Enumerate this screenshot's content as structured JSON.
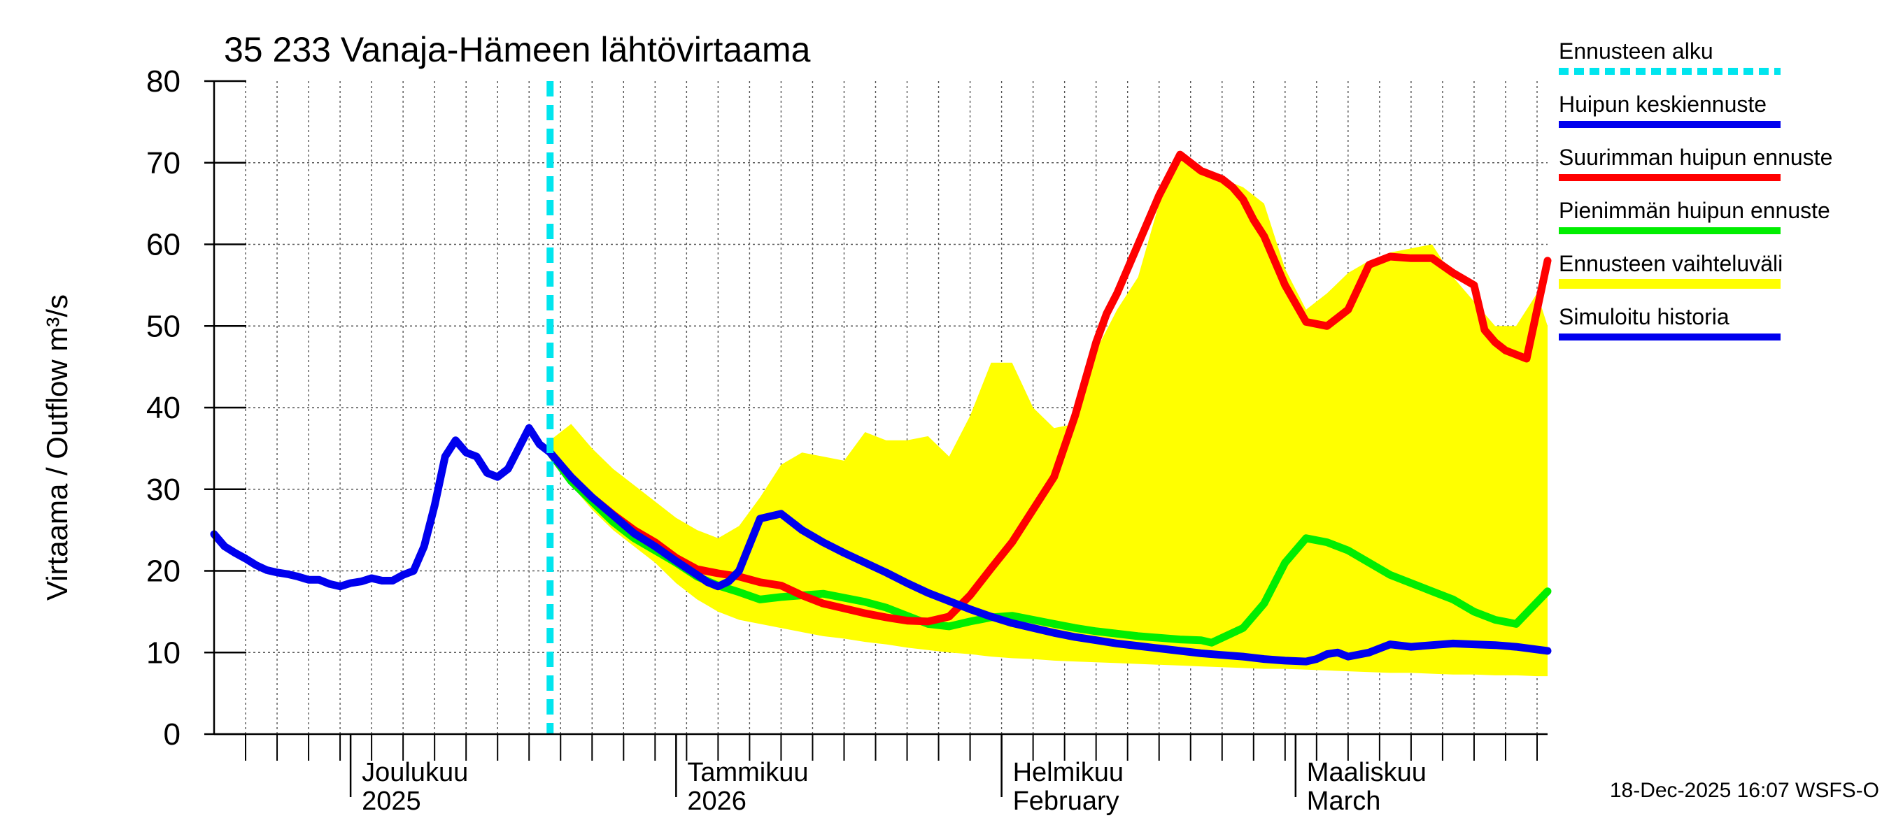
{
  "chart_data": {
    "type": "line",
    "title": "35 233 Vanaja-Hämeen lähtövirtaama",
    "ylabel": "Virtaama / Outflow    m³/s",
    "ylim": [
      0,
      80
    ],
    "yticks": [
      0,
      10,
      20,
      30,
      40,
      50,
      60,
      70,
      80
    ],
    "x_unit": "days since 2025-11-18",
    "xlim": [
      0,
      127
    ],
    "forecast_start_day": 32,
    "month_labels": [
      {
        "day": 13,
        "line1": "Joulukuu",
        "line2": "2025"
      },
      {
        "day": 44,
        "line1": "Tammikuu",
        "line2": "2026"
      },
      {
        "day": 75,
        "line1": "Helmikuu",
        "line2": "February"
      },
      {
        "day": 103,
        "line1": "Maaliskuu",
        "line2": "March"
      }
    ],
    "month_boundaries": [
      13,
      44,
      75,
      103
    ],
    "timestamp": "18-Dec-2025 16:07 WSFS-O",
    "colors": {
      "forecast_start": "#00e5ee",
      "median": "#0000ee",
      "max": "#ff0000",
      "min": "#00ee00",
      "band": "#ffff00",
      "history": "#0000ee"
    },
    "legend": [
      {
        "label": "Ennusteen alku",
        "key": "forecast_start",
        "style": "dashed"
      },
      {
        "label": "Huipun keskiennuste",
        "key": "median",
        "style": "solid"
      },
      {
        "label": "Suurimman huipun ennuste",
        "key": "max",
        "style": "solid"
      },
      {
        "label": "Pienimmän huipun ennuste",
        "key": "min",
        "style": "solid"
      },
      {
        "label": "Ennusteen vaihteluväli",
        "key": "band",
        "style": "solid"
      },
      {
        "label": "Simuloitu historia",
        "key": "history",
        "style": "solid"
      }
    ],
    "series": [
      {
        "name": "Simuloitu historia",
        "key": "history",
        "x": [
          0,
          1,
          2,
          3,
          4,
          5,
          6,
          7,
          8,
          9,
          10,
          11,
          12,
          13,
          14,
          15,
          16,
          17,
          18,
          19,
          20,
          21,
          22,
          23,
          24,
          25,
          26,
          27,
          28,
          29,
          30,
          31,
          32
        ],
        "y": [
          24.5,
          23.0,
          22.2,
          21.5,
          20.7,
          20.1,
          19.8,
          19.6,
          19.3,
          18.9,
          18.9,
          18.4,
          18.1,
          18.5,
          18.7,
          19.1,
          18.8,
          18.8,
          19.5,
          20.0,
          23.0,
          28.0,
          34.0,
          36.0,
          34.5,
          34.0,
          32.0,
          31.5,
          32.5,
          35.0,
          37.5,
          35.5,
          34.5
        ]
      },
      {
        "name": "Huipun keskiennuste",
        "key": "median",
        "x": [
          32,
          34,
          36,
          38,
          40,
          42,
          44,
          46,
          47,
          48,
          49,
          50,
          51,
          52,
          54,
          56,
          58,
          60,
          62,
          64,
          66,
          68,
          70,
          72,
          74,
          76,
          78,
          80,
          82,
          84,
          86,
          88,
          90,
          92,
          94,
          96,
          98,
          100,
          102,
          104,
          105,
          106,
          107,
          108,
          110,
          112,
          114,
          116,
          118,
          120,
          122,
          124,
          127
        ],
        "y": [
          34.5,
          31.5,
          29.0,
          26.8,
          24.6,
          23.0,
          21.2,
          19.5,
          18.6,
          18.1,
          18.7,
          20.0,
          23.2,
          26.4,
          27.0,
          25.0,
          23.5,
          22.2,
          21.0,
          19.8,
          18.5,
          17.3,
          16.3,
          15.3,
          14.4,
          13.6,
          13.0,
          12.4,
          11.9,
          11.5,
          11.1,
          10.8,
          10.5,
          10.2,
          9.9,
          9.7,
          9.5,
          9.2,
          9.0,
          8.9,
          9.2,
          9.8,
          10.0,
          9.5,
          10.0,
          11.0,
          10.7,
          10.9,
          11.1,
          11.0,
          10.9,
          10.7,
          10.2
        ]
      },
      {
        "name": "Suurimman huipun ennuste",
        "key": "max",
        "x": [
          32,
          34,
          36,
          38,
          40,
          42,
          44,
          46,
          48,
          50,
          52,
          54,
          56,
          58,
          60,
          62,
          64,
          66,
          68,
          70,
          72,
          74,
          76,
          78,
          80,
          82,
          84,
          85,
          86,
          87,
          88,
          90,
          92,
          94,
          96,
          97,
          98,
          99,
          100,
          102,
          104,
          106,
          108,
          110,
          112,
          114,
          116,
          118,
          120,
          121,
          122,
          123,
          124,
          125,
          127
        ],
        "y": [
          34.5,
          31.5,
          29.0,
          26.9,
          25.0,
          23.5,
          21.6,
          20.2,
          19.7,
          19.3,
          18.6,
          18.2,
          17.0,
          16.0,
          15.4,
          14.8,
          14.3,
          13.9,
          13.8,
          14.4,
          17.0,
          20.3,
          23.5,
          27.5,
          31.5,
          39.0,
          48.0,
          51.5,
          54.0,
          57.0,
          60.0,
          66.0,
          71.0,
          69.0,
          68.0,
          67.0,
          65.5,
          63.0,
          61.0,
          55.0,
          50.5,
          50.0,
          52.0,
          57.5,
          58.5,
          58.3,
          58.3,
          56.5,
          55.0,
          49.5,
          48.0,
          47.0,
          46.5,
          46.0,
          58.0
        ]
      },
      {
        "name": "Pienimmän huipun ennuste",
        "key": "min",
        "x": [
          32,
          34,
          36,
          38,
          40,
          42,
          44,
          46,
          48,
          50,
          52,
          54,
          56,
          58,
          60,
          62,
          64,
          66,
          68,
          70,
          72,
          74,
          76,
          78,
          80,
          82,
          84,
          86,
          88,
          90,
          92,
          94,
          95,
          96,
          98,
          100,
          102,
          104,
          106,
          108,
          110,
          112,
          114,
          116,
          118,
          120,
          122,
          124,
          127
        ],
        "y": [
          34.5,
          31.0,
          28.5,
          26.0,
          24.0,
          22.5,
          21.0,
          19.3,
          18.2,
          17.4,
          16.5,
          16.8,
          17.0,
          17.2,
          16.7,
          16.2,
          15.5,
          14.5,
          13.5,
          13.2,
          13.8,
          14.3,
          14.5,
          14.0,
          13.5,
          13.0,
          12.6,
          12.3,
          12.0,
          11.8,
          11.6,
          11.5,
          11.2,
          11.8,
          13.0,
          16.0,
          21.0,
          24.0,
          23.5,
          22.5,
          21.0,
          19.5,
          18.5,
          17.5,
          16.5,
          15.0,
          14.0,
          13.5,
          17.5
        ]
      }
    ],
    "band": {
      "name": "Ennusteen vaihteluväli",
      "key": "band",
      "x": [
        32,
        34,
        36,
        38,
        40,
        42,
        44,
        46,
        48,
        50,
        52,
        54,
        56,
        58,
        60,
        62,
        64,
        66,
        68,
        70,
        72,
        74,
        76,
        78,
        80,
        82,
        84,
        86,
        88,
        90,
        92,
        94,
        96,
        98,
        100,
        102,
        104,
        106,
        108,
        110,
        112,
        114,
        116,
        118,
        120,
        122,
        124,
        126,
        127
      ],
      "upper": [
        36.0,
        38.0,
        35.0,
        32.5,
        30.5,
        28.5,
        26.5,
        25.0,
        24.0,
        25.5,
        29.0,
        33.0,
        34.5,
        34.0,
        33.5,
        37.0,
        36.0,
        36.0,
        36.5,
        34.0,
        39.0,
        45.5,
        45.5,
        40.0,
        37.5,
        38.0,
        47.0,
        52.0,
        56.0,
        65.0,
        71.0,
        69.0,
        68.0,
        67.0,
        65.0,
        57.0,
        52.0,
        54.0,
        56.5,
        58.0,
        59.0,
        59.5,
        60.0,
        56.0,
        53.0,
        50.0,
        50.0,
        54.0,
        50.0
      ],
      "lower": [
        34.0,
        30.5,
        27.5,
        25.0,
        23.0,
        21.0,
        18.5,
        16.5,
        15.0,
        14.0,
        13.5,
        13.0,
        12.5,
        12.0,
        11.7,
        11.3,
        11.0,
        10.6,
        10.3,
        10.0,
        9.8,
        9.5,
        9.3,
        9.2,
        9.0,
        8.9,
        8.8,
        8.7,
        8.6,
        8.5,
        8.4,
        8.3,
        8.2,
        8.1,
        8.0,
        8.0,
        7.9,
        7.8,
        7.7,
        7.6,
        7.5,
        7.5,
        7.4,
        7.3,
        7.3,
        7.2,
        7.2,
        7.1,
        7.1
      ]
    }
  }
}
